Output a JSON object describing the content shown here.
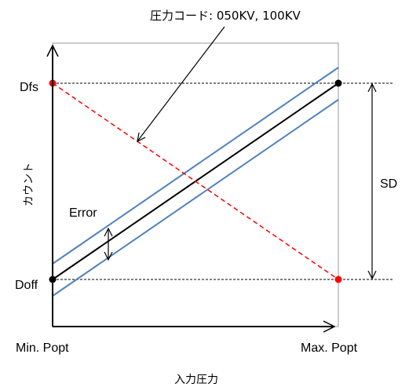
{
  "annotation": {
    "text": "圧力コード: 050KV, 100KV"
  },
  "y_axis": {
    "label": "カウント",
    "tick_top": "Dfs",
    "tick_bottom": "Doff"
  },
  "x_axis": {
    "label": "入力圧力",
    "tick_left": "Min. Popt",
    "tick_right": "Max. Popt"
  },
  "error_label": "Error",
  "span_label": "SD",
  "colors": {
    "ideal_line": "#000000",
    "error_band": "#4f81bd",
    "inverse_line": "#ff0000",
    "guide": "#000000",
    "frame": "#999999"
  }
}
